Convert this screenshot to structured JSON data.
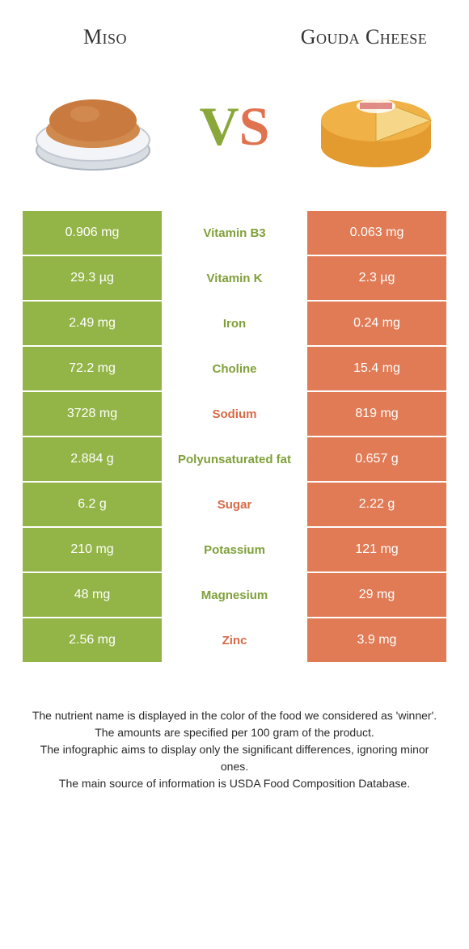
{
  "colors": {
    "left_bg": "#93b447",
    "right_bg": "#e07b55",
    "left_text": "#7fa038",
    "right_text": "#d86a47",
    "page_bg": "#ffffff"
  },
  "header": {
    "left_title": "Miso",
    "right_title": "Gouda Cheese",
    "vs_v": "V",
    "vs_s": "S"
  },
  "rows": [
    {
      "left": "0.906 mg",
      "label": "Vitamin B3",
      "right": "0.063 mg",
      "winner": "left"
    },
    {
      "left": "29.3 µg",
      "label": "Vitamin K",
      "right": "2.3 µg",
      "winner": "left"
    },
    {
      "left": "2.49 mg",
      "label": "Iron",
      "right": "0.24 mg",
      "winner": "left"
    },
    {
      "left": "72.2 mg",
      "label": "Choline",
      "right": "15.4 mg",
      "winner": "left"
    },
    {
      "left": "3728 mg",
      "label": "Sodium",
      "right": "819 mg",
      "winner": "right"
    },
    {
      "left": "2.884 g",
      "label": "Polyunsaturated fat",
      "right": "0.657 g",
      "winner": "left"
    },
    {
      "left": "6.2 g",
      "label": "Sugar",
      "right": "2.22 g",
      "winner": "right"
    },
    {
      "left": "210 mg",
      "label": "Potassium",
      "right": "121 mg",
      "winner": "left"
    },
    {
      "left": "48 mg",
      "label": "Magnesium",
      "right": "29 mg",
      "winner": "left"
    },
    {
      "left": "2.56 mg",
      "label": "Zinc",
      "right": "3.9 mg",
      "winner": "right"
    }
  ],
  "footer": {
    "line1": "The nutrient name is displayed in the color of the food we considered as 'winner'.",
    "line2": "The amounts are specified per 100 gram of the product.",
    "line3": "The infographic aims to display only the significant differences, ignoring minor ones.",
    "line4": "The main source of information is USDA Food Composition Database."
  }
}
